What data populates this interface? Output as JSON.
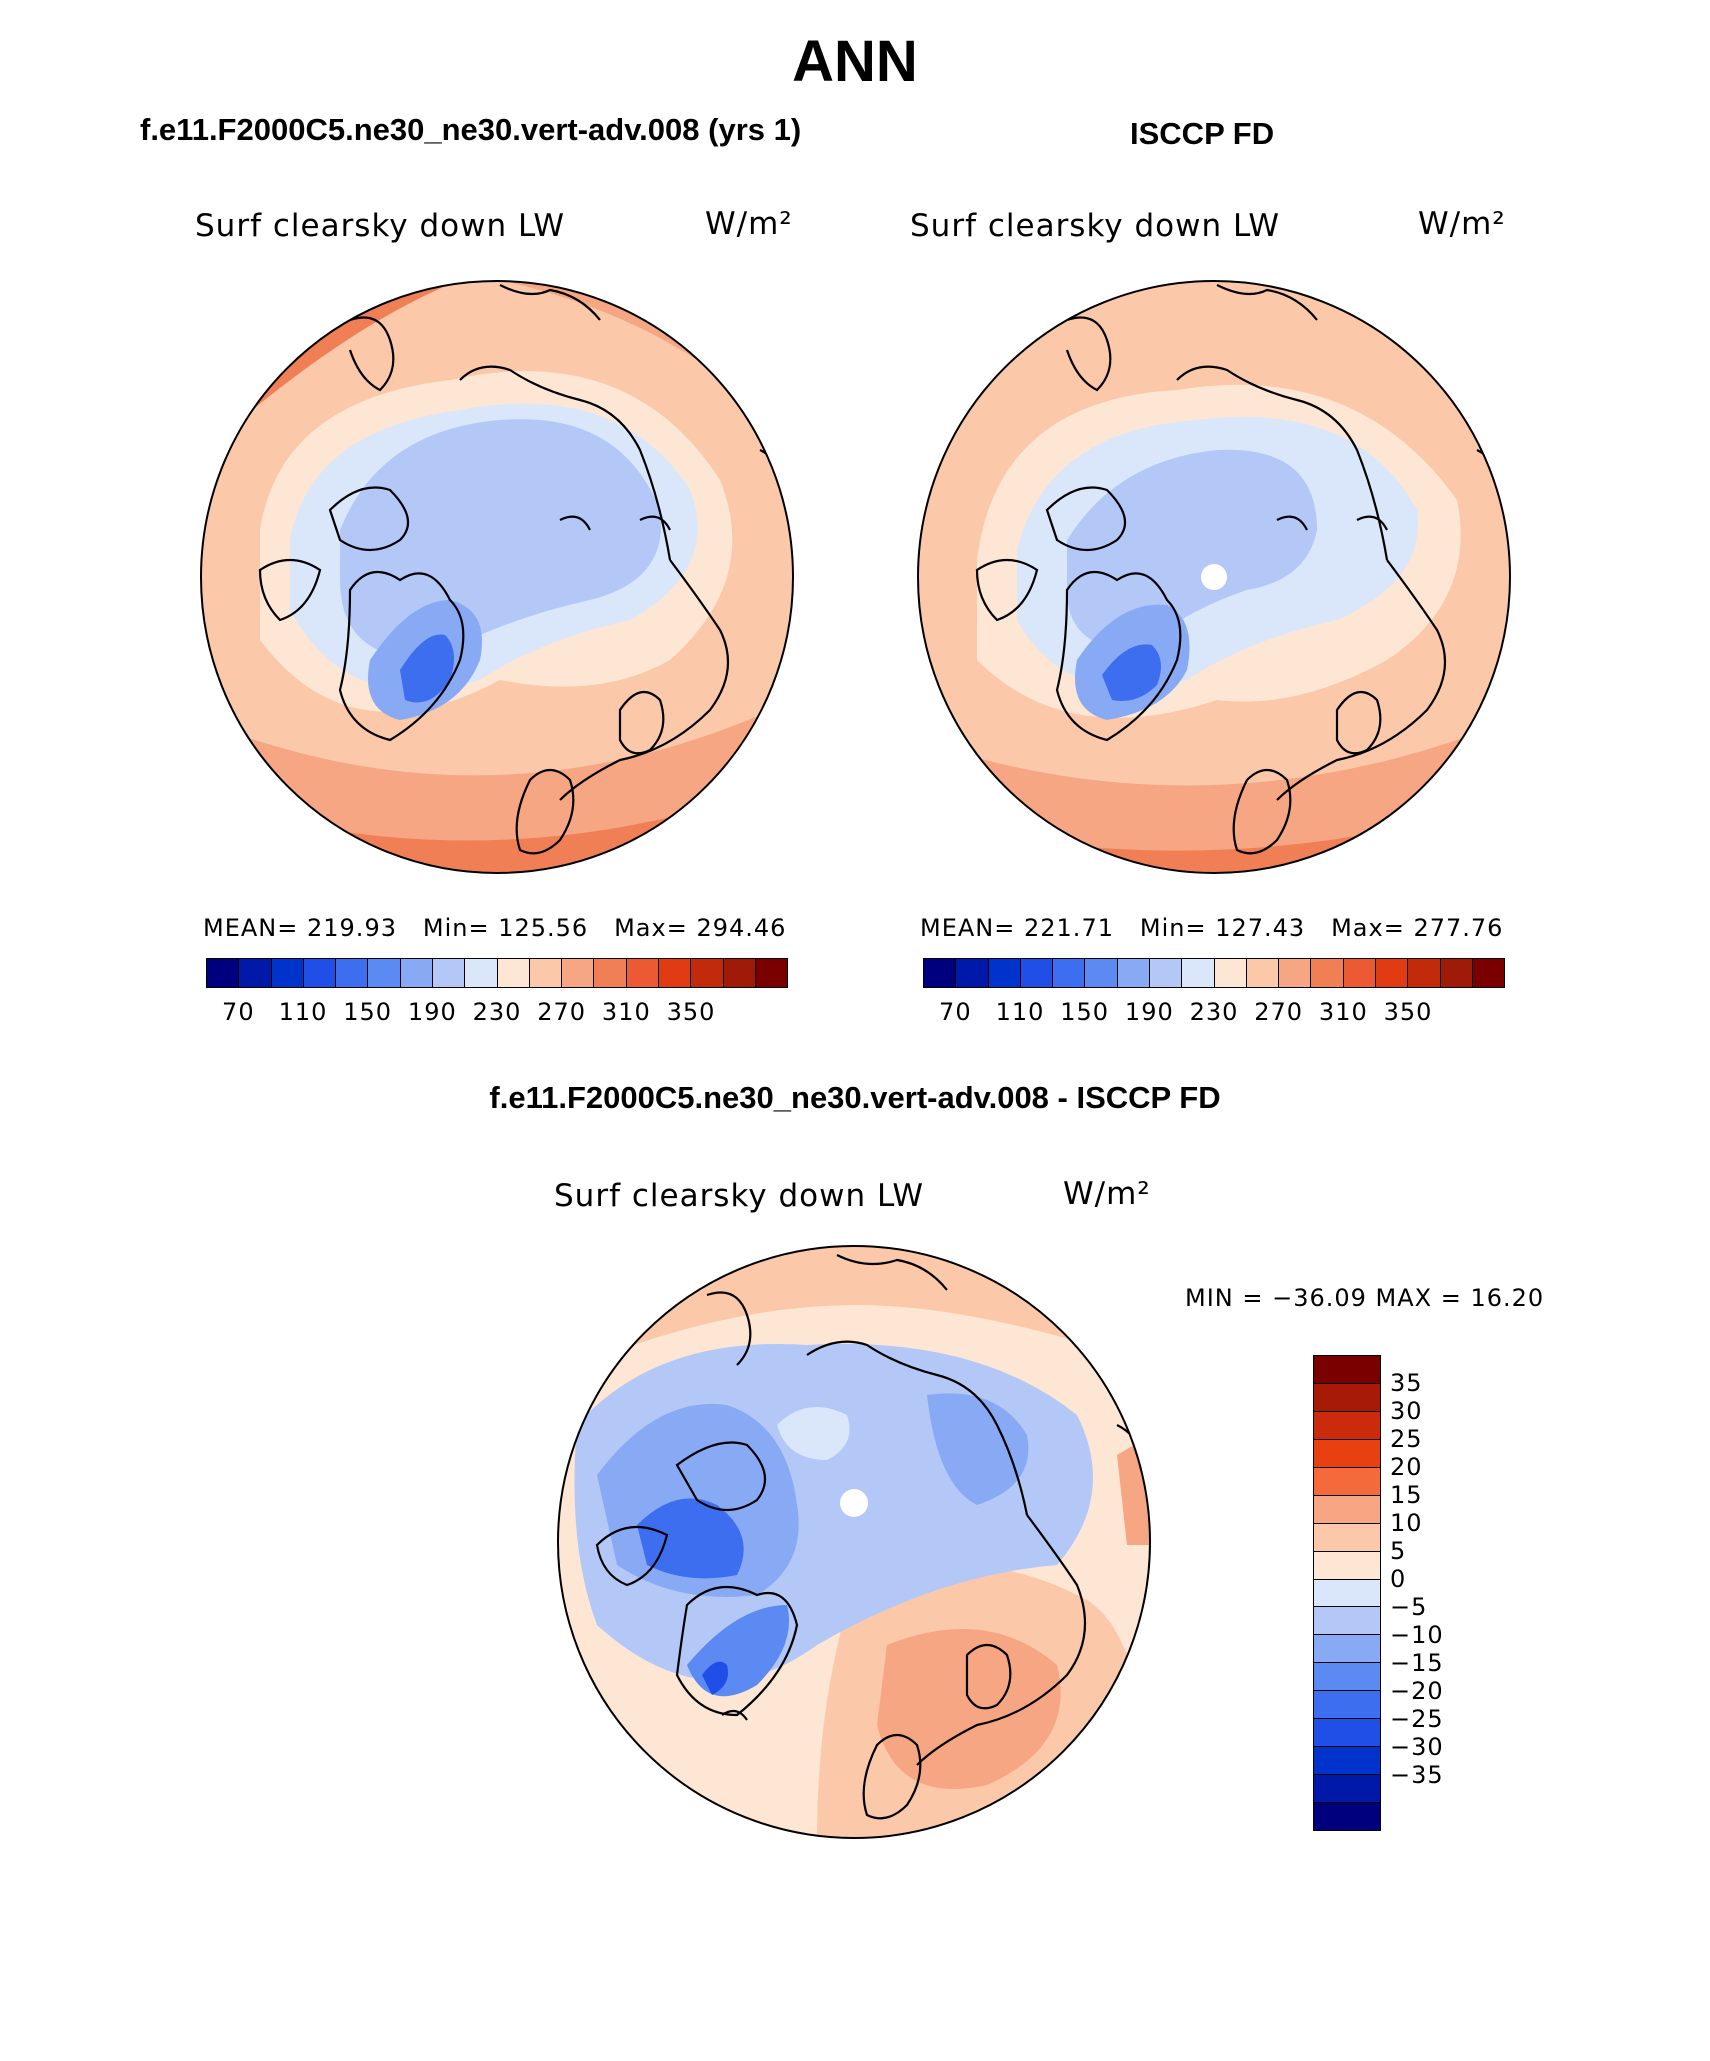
{
  "title": "ANN",
  "panels": {
    "model": {
      "title": "f.e11.F2000C5.ne30_ne30.vert-adv.008 (yrs 1)",
      "field": "Surf clearsky down LW",
      "units": "W/m²",
      "stats": {
        "mean_label": "MEAN=",
        "mean": "219.93",
        "min_label": "Min=",
        "min": "125.56",
        "max_label": "Max=",
        "max": "294.46"
      }
    },
    "obs": {
      "title": "ISCCP FD",
      "field": "Surf clearsky down LW",
      "units": "W/m²",
      "stats": {
        "mean_label": "MEAN=",
        "mean": "221.71",
        "min_label": "Min=",
        "min": "127.43",
        "max_label": "Max=",
        "max": "277.76"
      }
    },
    "diff": {
      "title": "f.e11.F2000C5.ne30_ne30.vert-adv.008 - ISCCP FD",
      "field": "Surf clearsky down LW",
      "units": "W/m²",
      "minmax": "MIN = −36.09 MAX =   16.20"
    }
  },
  "abs_colorbar": {
    "colors": [
      "#00007f",
      "#0019a8",
      "#0033cc",
      "#1f4fe6",
      "#3d6ef0",
      "#5b8af2",
      "#88aaf5",
      "#b3c8f7",
      "#dae7fb",
      "#fde6d4",
      "#fbc8aa",
      "#f6a682",
      "#f07f55",
      "#eb5a32",
      "#e13b14",
      "#c22a0c",
      "#a01a08",
      "#7a0000"
    ],
    "ticks": [
      "70",
      "110",
      "150",
      "190",
      "230",
      "270",
      "310",
      "350"
    ]
  },
  "diff_colorbar": {
    "colors": [
      "#7a0000",
      "#a81a08",
      "#cc2a0c",
      "#e84010",
      "#f56a3a",
      "#f6a682",
      "#fbc8aa",
      "#fde6d4",
      "#dae7fb",
      "#b3c8f7",
      "#88aaf5",
      "#5b8af2",
      "#3d6ef0",
      "#1f4fe6",
      "#0033cc",
      "#0019a8",
      "#00007f"
    ],
    "ticks": [
      "35",
      "30",
      "25",
      "20",
      "15",
      "10",
      "5",
      "0",
      "−5",
      "−10",
      "−15",
      "−20",
      "−25",
      "−30",
      "−35"
    ]
  },
  "map_colors": {
    "ocean_warm_outer": "#f07f55",
    "warm_mid": "#f6a682",
    "warm_light": "#fbc8aa",
    "neutral_warm": "#fde6d4",
    "cool_light": "#dae7fb",
    "cool_mid": "#b3c8f7",
    "cool_strong": "#88aaf5",
    "cool_deep": "#3d6ef0"
  }
}
